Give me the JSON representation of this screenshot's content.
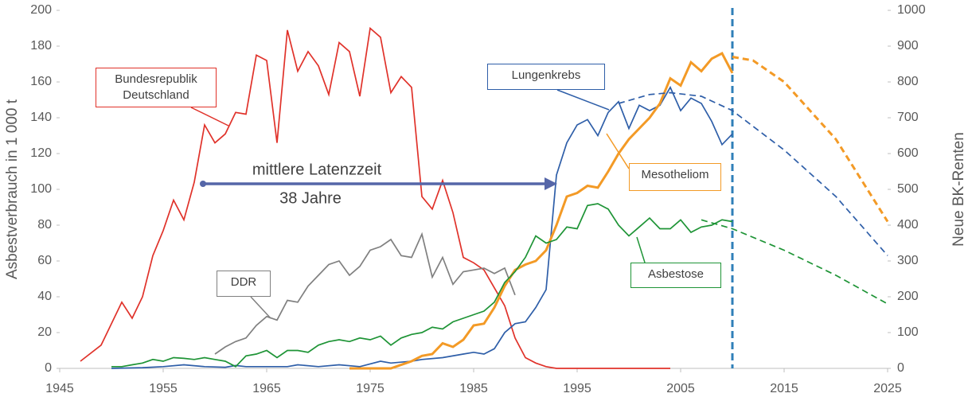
{
  "chart_data": {
    "type": "line",
    "y_label": "Asbestverbrauch in 1 000 t",
    "y2_label": "Neue BK-Renten",
    "annotations": [
      "mittlere Latenzzeit",
      "38 Jahre"
    ],
    "xlim": [
      1945,
      2025
    ],
    "xticks": [
      1945,
      1955,
      1965,
      1975,
      1985,
      1995,
      2005,
      2015,
      2025
    ],
    "ylim": [
      0,
      200
    ],
    "yticks": [
      0,
      20,
      40,
      60,
      80,
      100,
      120,
      140,
      160,
      180,
      200
    ],
    "y2lim": [
      0,
      1000
    ],
    "y2ticks": [
      0,
      100,
      200,
      300,
      400,
      500,
      600,
      700,
      800,
      900,
      1000
    ],
    "vline": 2010,
    "series": [
      {
        "name": "Bundesrepublik\nDeutschland",
        "color": "#e0322a",
        "axis": "y",
        "x": [
          1947,
          1949,
          1951,
          1952,
          1953,
          1954,
          1955,
          1956,
          1957,
          1958,
          1959,
          1960,
          1961,
          1962,
          1963,
          1964,
          1965,
          1966,
          1967,
          1968,
          1969,
          1970,
          1971,
          1972,
          1973,
          1974,
          1975,
          1976,
          1977,
          1978,
          1979,
          1980,
          1981,
          1982,
          1983,
          1984,
          1985,
          1986,
          1987,
          1988,
          1989,
          1990,
          1991,
          1992,
          1993,
          2004
        ],
        "values": [
          4,
          13,
          37,
          28,
          40,
          63,
          77,
          94,
          83,
          104,
          136,
          126,
          131,
          143,
          142,
          175,
          172,
          126,
          189,
          166,
          177,
          169,
          153,
          182,
          177,
          152,
          190,
          185,
          154,
          163,
          157,
          96,
          89,
          105,
          87,
          62,
          59,
          55,
          45,
          35,
          17,
          6,
          3,
          1,
          0,
          0
        ]
      },
      {
        "name": "DDR",
        "color": "#808080",
        "axis": "y",
        "x": [
          1960,
          1961,
          1962,
          1963,
          1964,
          1965,
          1966,
          1967,
          1968,
          1969,
          1970,
          1971,
          1972,
          1973,
          1974,
          1975,
          1976,
          1977,
          1978,
          1979,
          1980,
          1981,
          1982,
          1983,
          1984,
          1985,
          1986,
          1987,
          1988,
          1989
        ],
        "values": [
          8,
          12,
          15,
          17,
          24,
          29,
          27,
          38,
          37,
          46,
          52,
          58,
          60,
          52,
          57,
          66,
          68,
          72,
          63,
          62,
          75,
          51,
          62,
          47,
          54,
          55,
          56,
          53,
          56,
          41
        ]
      },
      {
        "name": "Lungenkrebs",
        "color": "#2e5ea8",
        "axis": "y2",
        "x": [
          1950,
          1953,
          1955,
          1957,
          1959,
          1961,
          1962,
          1963,
          1965,
          1967,
          1968,
          1970,
          1972,
          1974,
          1976,
          1977,
          1979,
          1980,
          1982,
          1984,
          1985,
          1986,
          1987,
          1988,
          1989,
          1990,
          1991,
          1992,
          1993,
          1994,
          1995,
          1996,
          1997,
          1998,
          1999,
          2000,
          2001,
          2002,
          2003,
          2004,
          2005,
          2006,
          2007,
          2008,
          2009,
          2010
        ],
        "values": [
          0,
          2,
          5,
          10,
          5,
          3,
          8,
          5,
          5,
          5,
          10,
          5,
          10,
          5,
          20,
          15,
          20,
          25,
          30,
          40,
          45,
          40,
          55,
          100,
          125,
          130,
          170,
          220,
          540,
          630,
          680,
          695,
          650,
          715,
          745,
          670,
          735,
          720,
          735,
          785,
          720,
          755,
          740,
          690,
          625,
          655
        ]
      },
      {
        "name": "Mesotheliom",
        "color": "#f39a26",
        "axis": "y2",
        "width": 3,
        "x": [
          1973,
          1977,
          1979,
          1980,
          1981,
          1982,
          1983,
          1984,
          1985,
          1986,
          1987,
          1988,
          1989,
          1990,
          1991,
          1992,
          1993,
          1994,
          1995,
          1996,
          1997,
          1998,
          1999,
          2000,
          2001,
          2002,
          2003,
          2004,
          2005,
          2006,
          2007,
          2008,
          2009,
          2010
        ],
        "values": [
          0,
          0,
          20,
          35,
          40,
          70,
          60,
          80,
          120,
          125,
          170,
          230,
          275,
          290,
          300,
          330,
          400,
          480,
          490,
          510,
          505,
          550,
          600,
          640,
          670,
          700,
          740,
          810,
          790,
          855,
          830,
          865,
          880,
          825
        ]
      },
      {
        "name": "Asbestose",
        "color": "#1e9436",
        "axis": "y2",
        "x": [
          1950,
          1951,
          1952,
          1953,
          1954,
          1955,
          1956,
          1957,
          1958,
          1959,
          1960,
          1961,
          1962,
          1963,
          1964,
          1965,
          1966,
          1967,
          1968,
          1969,
          1970,
          1971,
          1972,
          1973,
          1974,
          1975,
          1976,
          1977,
          1978,
          1979,
          1980,
          1981,
          1982,
          1983,
          1984,
          1985,
          1986,
          1987,
          1988,
          1989,
          1990,
          1991,
          1992,
          1993,
          1994,
          1995,
          1996,
          1997,
          1998,
          1999,
          2000,
          2001,
          2002,
          2003,
          2004,
          2005,
          2006,
          2007,
          2008,
          2009,
          2010
        ],
        "values": [
          5,
          5,
          10,
          15,
          25,
          20,
          30,
          28,
          25,
          30,
          25,
          20,
          5,
          35,
          40,
          50,
          30,
          50,
          50,
          45,
          65,
          75,
          80,
          75,
          85,
          80,
          90,
          65,
          85,
          95,
          100,
          115,
          110,
          130,
          140,
          150,
          160,
          185,
          240,
          270,
          310,
          370,
          350,
          360,
          395,
          390,
          455,
          460,
          445,
          400,
          370,
          395,
          420,
          390,
          390,
          415,
          380,
          395,
          400,
          415,
          410
        ]
      },
      {
        "color": "#2e5ea8",
        "axis": "y2",
        "dashed": true,
        "x": [
          1999,
          2002,
          2004,
          2007,
          2010,
          2015,
          2020,
          2025
        ],
        "values": [
          740,
          765,
          770,
          760,
          720,
          610,
          480,
          315
        ]
      },
      {
        "color": "#f39a26",
        "axis": "y2",
        "dashed": true,
        "width": 3,
        "x": [
          2010,
          2012,
          2015,
          2020,
          2025
        ],
        "values": [
          870,
          860,
          800,
          640,
          410
        ]
      },
      {
        "color": "#1e9436",
        "axis": "y2",
        "dashed": true,
        "x": [
          2007,
          2010,
          2015,
          2020,
          2025
        ],
        "values": [
          415,
          390,
          330,
          260,
          180
        ]
      }
    ]
  }
}
